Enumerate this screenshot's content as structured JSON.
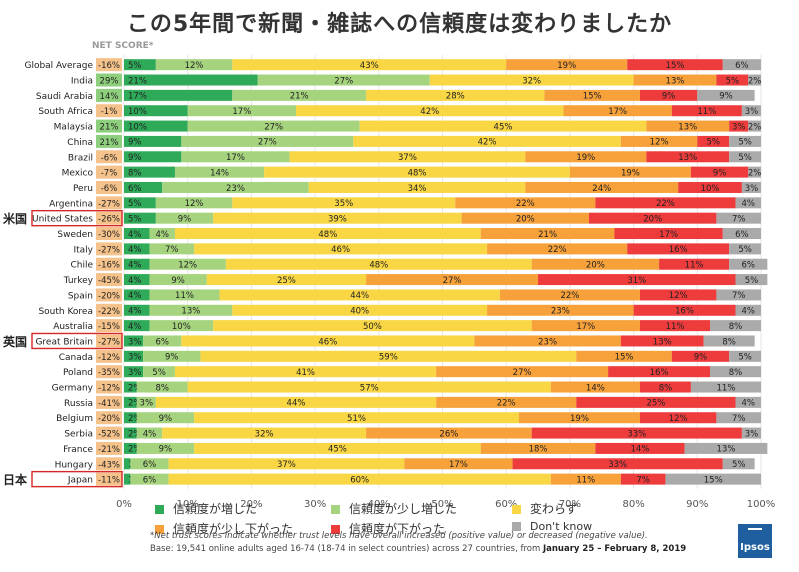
{
  "title": "この5年間で新聞・雑誌への信頼度は変わりましたか",
  "net_score_label": "NET SCORE*",
  "country_tags": [
    {
      "country": "United States",
      "tag": "米国"
    },
    {
      "country": "Great Britain",
      "tag": "英国"
    },
    {
      "country": "Japan",
      "tag": "日本"
    }
  ],
  "colors": {
    "increased": "#2eaa59",
    "slightly_increased": "#a6d47e",
    "unchanged": "#f8d644",
    "slightly_decreased": "#f7a13a",
    "decreased": "#ee3b3c",
    "dont_know": "#aaaaaa",
    "net_negative_bg": "#f4c28a",
    "net_positive_bg": "#8dcf7c",
    "highlight_box": "#d62828"
  },
  "chart_data": {
    "type": "bar",
    "orientation": "horizontal",
    "stacked": true,
    "xlim": [
      0,
      100
    ],
    "x_ticks": [
      "0%",
      "10%",
      "20%",
      "30%",
      "40%",
      "50%",
      "60%",
      "70%",
      "80%",
      "90%",
      "100%"
    ],
    "series_names": [
      "信頼度が増した",
      "信頼度が少し増した",
      "変わらず",
      "信頼度が少し下がった",
      "信頼度が下がった",
      "Don't know"
    ],
    "categories": [
      "Global Average",
      "India",
      "Saudi Arabia",
      "South Africa",
      "Malaysia",
      "China",
      "Brazil",
      "Mexico",
      "Peru",
      "Argentina",
      "United States",
      "Sweden",
      "Italy",
      "Chile",
      "Turkey",
      "Spain",
      "South Korea",
      "Australia",
      "Great Britain",
      "Canada",
      "Poland",
      "Germany",
      "Russia",
      "Belgium",
      "Serbia",
      "France",
      "Hungary",
      "Japan"
    ],
    "net_scores": [
      "-16%",
      "29%",
      "14%",
      "-1%",
      "21%",
      "21%",
      "-6%",
      "-7%",
      "-6%",
      "-27%",
      "-26%",
      "-30%",
      "-27%",
      "-16%",
      "-45%",
      "-20%",
      "-22%",
      "-15%",
      "-27%",
      "-12%",
      "-35%",
      "-12%",
      "-41%",
      "-20%",
      "-52%",
      "-21%",
      "-43%",
      "-11%"
    ],
    "values": [
      [
        5,
        12,
        43,
        19,
        15,
        6
      ],
      [
        21,
        27,
        32,
        13,
        5,
        2
      ],
      [
        17,
        21,
        28,
        15,
        9,
        9
      ],
      [
        10,
        17,
        42,
        17,
        11,
        3
      ],
      [
        10,
        27,
        45,
        13,
        3,
        2
      ],
      [
        9,
        27,
        42,
        12,
        5,
        5
      ],
      [
        9,
        17,
        37,
        19,
        13,
        5
      ],
      [
        8,
        14,
        48,
        19,
        9,
        2
      ],
      [
        6,
        23,
        34,
        24,
        10,
        3
      ],
      [
        5,
        12,
        35,
        22,
        22,
        4
      ],
      [
        5,
        9,
        39,
        20,
        20,
        7
      ],
      [
        4,
        4,
        48,
        21,
        17,
        6
      ],
      [
        4,
        7,
        46,
        22,
        16,
        5
      ],
      [
        4,
        12,
        48,
        20,
        11,
        6
      ],
      [
        4,
        9,
        25,
        27,
        31,
        5
      ],
      [
        4,
        11,
        44,
        22,
        12,
        7
      ],
      [
        4,
        13,
        40,
        23,
        16,
        4
      ],
      [
        4,
        10,
        50,
        17,
        11,
        8
      ],
      [
        3,
        6,
        46,
        23,
        13,
        8
      ],
      [
        3,
        9,
        59,
        15,
        9,
        5
      ],
      [
        3,
        5,
        41,
        27,
        16,
        8
      ],
      [
        2,
        8,
        57,
        14,
        8,
        11
      ],
      [
        2,
        3,
        44,
        22,
        25,
        4
      ],
      [
        2,
        9,
        51,
        19,
        12,
        7
      ],
      [
        2,
        4,
        32,
        26,
        33,
        3
      ],
      [
        2,
        9,
        45,
        18,
        14,
        13
      ],
      [
        1,
        6,
        37,
        17,
        33,
        5
      ],
      [
        1,
        6,
        60,
        11,
        7,
        15
      ]
    ]
  },
  "footnote": "*Net trust scores indicate whether trust levels have overall increased (positive value) or decreased (negative value).",
  "base_note_prefix": "Base: 19,541 online adults aged 16-74 (18-74 in select countries) across 27 countries, from ",
  "base_note_dates": "January 25 – February 8, 2019",
  "logo_text": "Ipsos"
}
